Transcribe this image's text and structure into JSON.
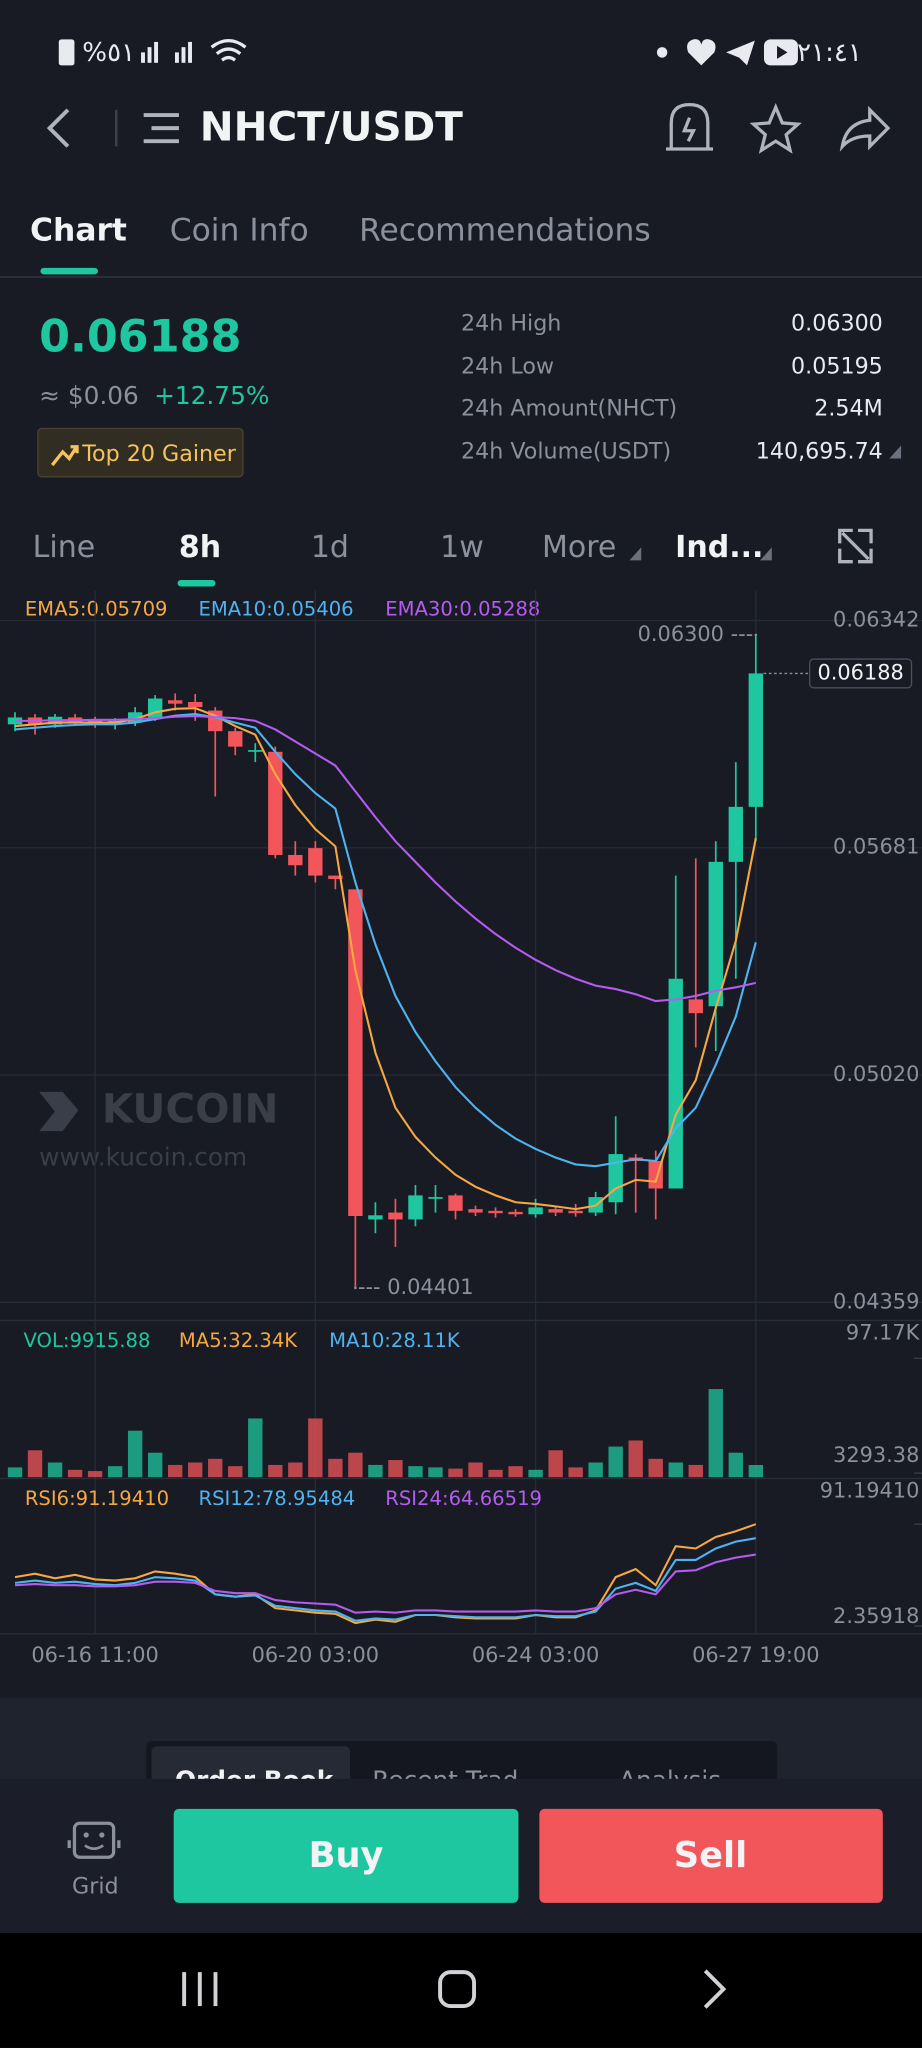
{
  "status_bar": {
    "battery": "%٥١",
    "time": "٢١:٤١"
  },
  "header": {
    "title": "NHCT/USDT"
  },
  "tabs": [
    "Chart",
    "Coin Info",
    "Recommendations"
  ],
  "price": {
    "last": "0.06188",
    "usd": "≈ $0.06",
    "change": "+12.75%",
    "badge": "Top 20 Gainer"
  },
  "stats": [
    [
      "24h High",
      "0.06300"
    ],
    [
      "24h Low",
      "0.05195"
    ],
    [
      "24h Amount(NHCT)",
      "2.54M"
    ],
    [
      "24h Volume(USDT)",
      "140,695.74"
    ]
  ],
  "intervals": [
    "Line",
    "8h",
    "1d",
    "1w",
    "More",
    "Ind..."
  ],
  "chart_data": {
    "type": "candlestick",
    "legend": [
      "EMA5:0.05709",
      "EMA10:0.05406",
      "EMA30:0.05288"
    ],
    "up_color": "#1fc7a0",
    "down_color": "#f2555a",
    "open": [
      0.0604,
      0.0606,
      0.0604,
      0.0606,
      0.06055,
      0.0604,
      0.06045,
      0.0606,
      0.0611,
      0.06105,
      0.0608,
      0.0602,
      0.0596,
      0.0596,
      0.0566,
      0.0568,
      0.056,
      0.0556,
      0.046,
      0.0462,
      0.046,
      0.0466,
      0.0467,
      0.0463,
      0.04625,
      0.04622,
      0.04615,
      0.0463,
      0.04625,
      0.0462,
      0.0465,
      0.0478,
      0.0477,
      0.0469,
      0.0524,
      0.0522,
      0.0564,
      0.058
    ],
    "high": [
      0.06075,
      0.0607,
      0.0607,
      0.0607,
      0.06062,
      0.06058,
      0.0609,
      0.06125,
      0.0613,
      0.06128,
      0.0609,
      0.0603,
      0.05985,
      0.05975,
      0.057,
      0.057,
      0.056,
      0.0556,
      0.0465,
      0.0466,
      0.047,
      0.047,
      0.04675,
      0.0464,
      0.04635,
      0.0463,
      0.0466,
      0.0464,
      0.04645,
      0.0468,
      0.049,
      0.0479,
      0.048,
      0.056,
      0.0565,
      0.057,
      0.0593,
      0.063
    ],
    "low": [
      0.0602,
      0.0601,
      0.0603,
      0.06035,
      0.0603,
      0.06025,
      0.06035,
      0.0605,
      0.0608,
      0.0605,
      0.0583,
      0.0595,
      0.0593,
      0.0565,
      0.056,
      0.0558,
      0.0556,
      0.04401,
      0.0456,
      0.0452,
      0.0458,
      0.0462,
      0.046,
      0.0461,
      0.04605,
      0.04608,
      0.04605,
      0.0461,
      0.04608,
      0.0461,
      0.04615,
      0.0462,
      0.046,
      0.0469,
      0.051,
      0.0509,
      0.053,
      0.057
    ],
    "close": [
      0.0606,
      0.0604,
      0.06062,
      0.06045,
      0.06045,
      0.0605,
      0.06075,
      0.06115,
      0.061,
      0.0609,
      0.0602,
      0.05975,
      0.05965,
      0.0566,
      0.0563,
      0.056,
      0.0559,
      0.0461,
      0.04612,
      0.046,
      0.0467,
      0.04665,
      0.04625,
      0.0462,
      0.04618,
      0.04615,
      0.04635,
      0.0462,
      0.04618,
      0.04665,
      0.0479,
      0.0477,
      0.0469,
      0.053,
      0.052,
      0.0564,
      0.058,
      0.06188
    ],
    "series": [
      {
        "name": "EMA5",
        "color": "#f5a742",
        "values": [
          0.06035,
          0.0604,
          0.06045,
          0.06045,
          0.06045,
          0.06045,
          0.06055,
          0.06075,
          0.06085,
          0.06087,
          0.06065,
          0.06035,
          0.0601,
          0.05895,
          0.05805,
          0.05735,
          0.05685,
          0.05325,
          0.05085,
          0.04925,
          0.0484,
          0.0478,
          0.0473,
          0.04695,
          0.0467,
          0.0465,
          0.04645,
          0.04638,
          0.0463,
          0.0464,
          0.0469,
          0.04715,
          0.0471,
          0.04905,
          0.05005,
          0.05215,
          0.0541,
          0.05709
        ]
      },
      {
        "name": "EMA10",
        "color": "#4fb3f0",
        "values": [
          0.06025,
          0.0603,
          0.06035,
          0.06038,
          0.0604,
          0.0604,
          0.06045,
          0.06055,
          0.06065,
          0.0607,
          0.0606,
          0.06045,
          0.0603,
          0.0596,
          0.05895,
          0.0584,
          0.05795,
          0.0558,
          0.054,
          0.0525,
          0.05145,
          0.0506,
          0.04985,
          0.04925,
          0.04875,
          0.04835,
          0.04805,
          0.0478,
          0.0476,
          0.04755,
          0.04765,
          0.04775,
          0.0477,
          0.04865,
          0.04925,
          0.0505,
          0.0519,
          0.05406
        ]
      },
      {
        "name": "EMA30",
        "color": "#b45cf0",
        "values": [
          0.0605,
          0.0605,
          0.06052,
          0.06052,
          0.06053,
          0.06053,
          0.06055,
          0.06058,
          0.06062,
          0.06064,
          0.06061,
          0.06058,
          0.0605,
          0.06025,
          0.0599,
          0.05955,
          0.0592,
          0.05845,
          0.0577,
          0.057,
          0.0564,
          0.0558,
          0.05525,
          0.05475,
          0.0543,
          0.0539,
          0.05355,
          0.05325,
          0.053,
          0.0528,
          0.0527,
          0.05255,
          0.05235,
          0.0524,
          0.0525,
          0.05265,
          0.05275,
          0.05288
        ]
      }
    ],
    "ylim": [
      0.0431,
      0.06418
    ],
    "yticks": [
      0.06342,
      0.05681,
      {
        "value": 0.0502,
        "label": "0.05020"
      },
      0.04359
    ],
    "xlim": [
      -0.75,
      45.3
    ],
    "xticks": [
      {
        "value": 4,
        "label": "06-16 11:00"
      },
      {
        "value": 15,
        "label": "06-20 03:00"
      },
      {
        "value": 26,
        "label": "06-24 03:00"
      },
      {
        "value": 37,
        "label": "06-27 19:00"
      }
    ],
    "annotations": [
      {
        "value": 0.063,
        "label": "0.06300 ---"
      },
      {
        "value": 0.04401,
        "label": "--- 0.04401"
      }
    ],
    "last_price": {
      "value": 0.06188,
      "label": "0.06188"
    },
    "grid": true,
    "watermark": [
      "KUCOIN",
      "www.kucoin.com"
    ],
    "volume": {
      "legend": [
        "VOL:9915.88",
        "MA5:32.34K",
        "MA10:28.11K"
      ],
      "values": [
        8000,
        22000,
        12000,
        6000,
        5000,
        9000,
        38000,
        20000,
        10000,
        12000,
        15000,
        9000,
        48000,
        10000,
        12000,
        48000,
        15000,
        20000,
        10000,
        14000,
        9000,
        8000,
        7000,
        12000,
        6000,
        9000,
        6000,
        22000,
        8000,
        12000,
        25000,
        30000,
        15000,
        12000,
        10000,
        72000,
        20000,
        9915.88
      ],
      "ylim": [
        0,
        97170
      ],
      "yticks": [
        {
          "value": 97170,
          "label": "97.17K"
        },
        3293.38
      ]
    },
    "rsi": {
      "legend": [
        "RSI6:91.19410",
        "RSI12:78.95484",
        "RSI24:64.66519"
      ],
      "series": [
        {
          "name": "RSI6",
          "color": "#f5a742",
          "values": [
            45,
            48,
            44,
            47,
            43,
            42,
            44,
            50,
            48,
            45,
            30,
            28,
            30,
            18,
            16,
            14,
            13,
            5,
            8,
            6,
            12,
            12,
            10,
            9,
            9,
            9,
            12,
            10,
            10,
            16,
            45,
            52,
            38,
            72,
            70,
            80,
            85,
            91.1941
          ]
        },
        {
          "name": "RSI12",
          "color": "#4fb3f0",
          "values": [
            40,
            42,
            40,
            41,
            39,
            38,
            40,
            45,
            44,
            42,
            30,
            28,
            29,
            20,
            18,
            16,
            15,
            7,
            9,
            8,
            12,
            12,
            11,
            10,
            10,
            10,
            12,
            11,
            11,
            15,
            35,
            40,
            33,
            60,
            60,
            70,
            76,
            78.95484
          ]
        },
        {
          "name": "RSI24",
          "color": "#b45cf0",
          "values": [
            38,
            39,
            38,
            38,
            37,
            37,
            38,
            41,
            41,
            40,
            33,
            31,
            31,
            25,
            23,
            22,
            21,
            14,
            15,
            14,
            16,
            16,
            15,
            15,
            15,
            15,
            16,
            15,
            15,
            18,
            30,
            34,
            30,
            50,
            51,
            58,
            62,
            64.66519
          ]
        }
      ],
      "ylim": [
        2.35918,
        91.1941
      ],
      "yticks": [
        {
          "value": 91.1941,
          "label": "91.19410"
        },
        2.35918
      ]
    }
  },
  "orderbook_tabs": [
    "Order Book",
    "Recent Trad",
    "Analysis"
  ],
  "footer": {
    "grid": "Grid",
    "buy": "Buy",
    "sell": "Sell"
  }
}
